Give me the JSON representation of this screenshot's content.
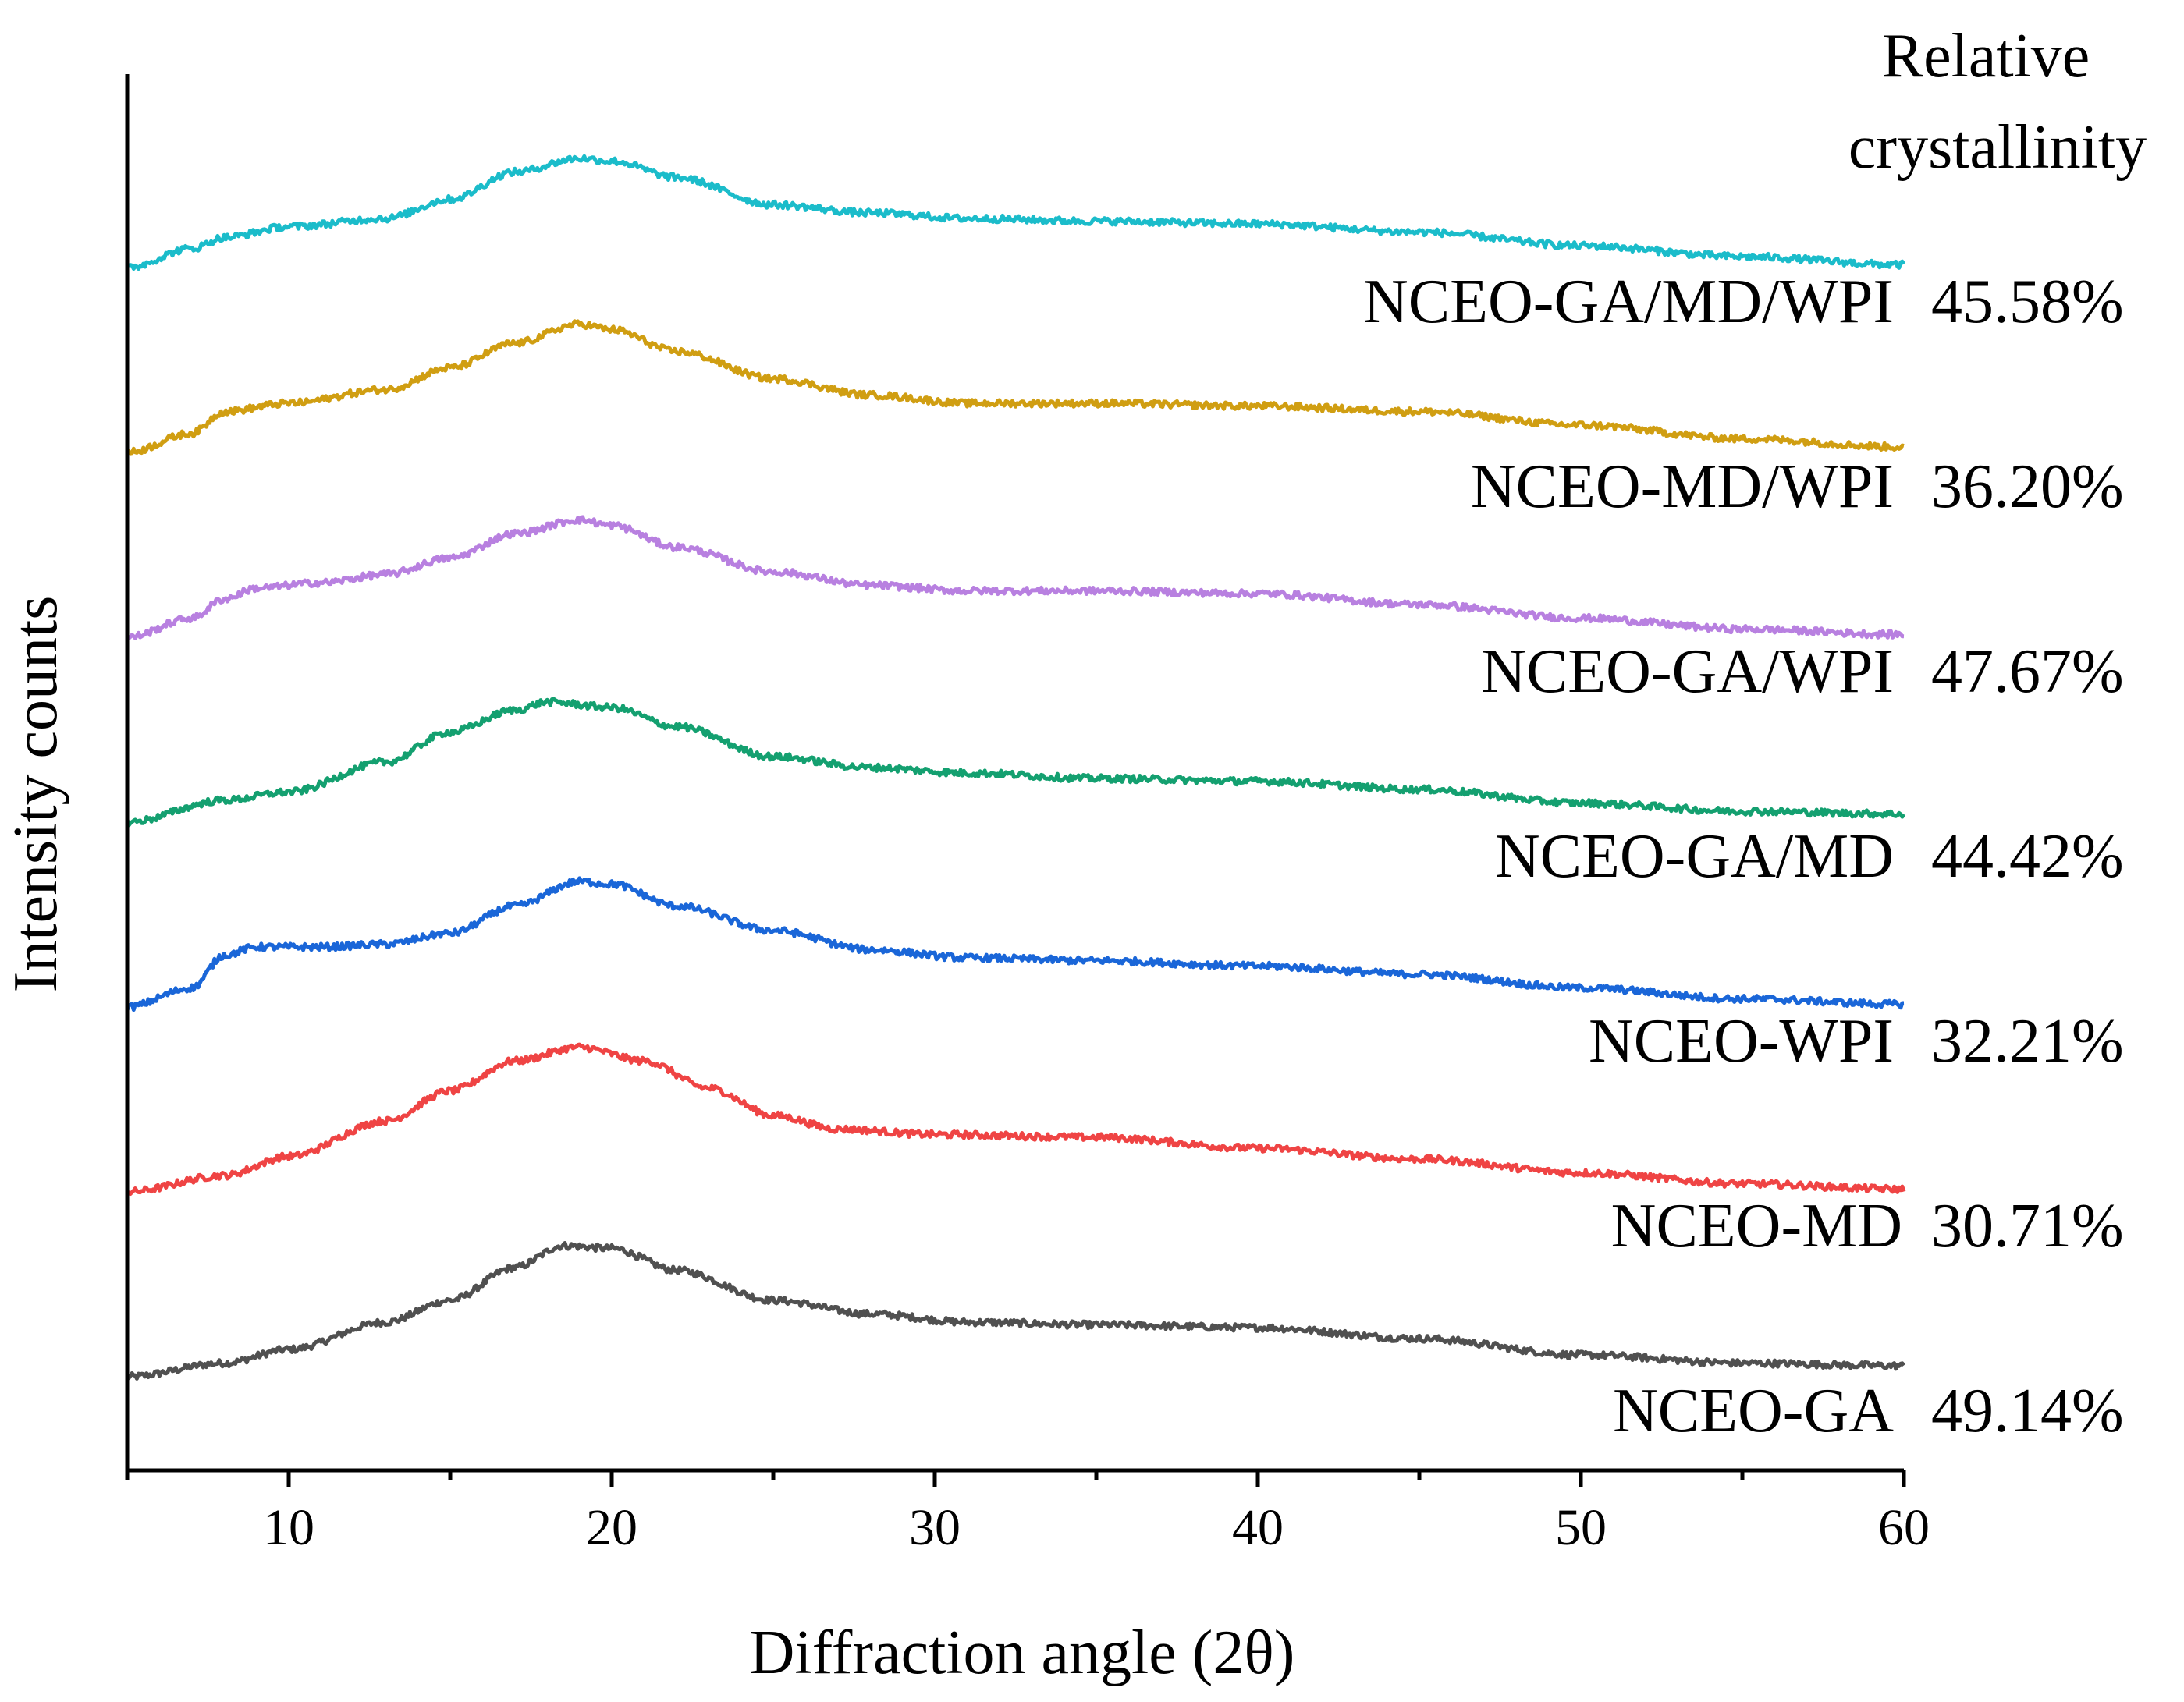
{
  "chart_data": {
    "type": "line",
    "xlabel": "Diffraction angle (2θ)",
    "ylabel": "Intensity counts",
    "xlim": [
      5,
      60
    ],
    "xticks": [
      10,
      20,
      30,
      40,
      50,
      60
    ],
    "legend_title": [
      "Relative",
      "crystallinity"
    ],
    "y_scale": "offset stacked, arbitrary units",
    "series": [
      {
        "name": "NCEO-GA",
        "value": "49.14%",
        "color": "#505050",
        "offset": 0,
        "points": [
          [
            5,
            0
          ],
          [
            8,
            0.1
          ],
          [
            10,
            0.2
          ],
          [
            13,
            0.4
          ],
          [
            15,
            0.56
          ],
          [
            17,
            0.8
          ],
          [
            18.5,
            0.96
          ],
          [
            20,
            0.94
          ],
          [
            22,
            0.78
          ],
          [
            25,
            0.56
          ],
          [
            28,
            0.46
          ],
          [
            31,
            0.4
          ],
          [
            35,
            0.38
          ],
          [
            40,
            0.36
          ],
          [
            45,
            0.28
          ],
          [
            50,
            0.16
          ],
          [
            55,
            0.1
          ],
          [
            60,
            0.08
          ]
        ]
      },
      {
        "name": "NCEO-MD",
        "value": "30.71%",
        "color": "#ef4444",
        "offset": 1,
        "points": [
          [
            5,
            0
          ],
          [
            8,
            0.12
          ],
          [
            10,
            0.26
          ],
          [
            13,
            0.52
          ],
          [
            15,
            0.74
          ],
          [
            17,
            0.96
          ],
          [
            19,
            1.06
          ],
          [
            21,
            0.96
          ],
          [
            23,
            0.76
          ],
          [
            25,
            0.56
          ],
          [
            27,
            0.46
          ],
          [
            30,
            0.42
          ],
          [
            35,
            0.4
          ],
          [
            40,
            0.32
          ],
          [
            45,
            0.24
          ],
          [
            50,
            0.14
          ],
          [
            55,
            0.06
          ],
          [
            60,
            0.02
          ]
        ]
      },
      {
        "name": "NCEO-WPI",
        "value": "32.21%",
        "color": "#1a66d8",
        "offset": 2,
        "points": [
          [
            5,
            0
          ],
          [
            7,
            0.14
          ],
          [
            8,
            0.38
          ],
          [
            9,
            0.44
          ],
          [
            11,
            0.44
          ],
          [
            13,
            0.46
          ],
          [
            15,
            0.54
          ],
          [
            17,
            0.74
          ],
          [
            19,
            0.92
          ],
          [
            20,
            0.9
          ],
          [
            22,
            0.74
          ],
          [
            25,
            0.56
          ],
          [
            28,
            0.42
          ],
          [
            31,
            0.36
          ],
          [
            35,
            0.34
          ],
          [
            40,
            0.3
          ],
          [
            45,
            0.24
          ],
          [
            50,
            0.14
          ],
          [
            55,
            0.06
          ],
          [
            60,
            0.02
          ]
        ]
      },
      {
        "name": "NCEO-GA/MD",
        "value": "44.42%",
        "color": "#14a070",
        "offset": 3,
        "points": [
          [
            5,
            0
          ],
          [
            8,
            0.16
          ],
          [
            10,
            0.22
          ],
          [
            13,
            0.44
          ],
          [
            15,
            0.66
          ],
          [
            17,
            0.82
          ],
          [
            18,
            0.88
          ],
          [
            20,
            0.84
          ],
          [
            22,
            0.7
          ],
          [
            25,
            0.48
          ],
          [
            28,
            0.4
          ],
          [
            31,
            0.36
          ],
          [
            35,
            0.32
          ],
          [
            40,
            0.3
          ],
          [
            45,
            0.24
          ],
          [
            50,
            0.14
          ],
          [
            55,
            0.08
          ],
          [
            60,
            0.06
          ]
        ]
      },
      {
        "name": "NCEO-GA/WPI",
        "value": "47.67%",
        "color": "#b880e0",
        "offset": 4,
        "points": [
          [
            5,
            0
          ],
          [
            7,
            0.14
          ],
          [
            8,
            0.28
          ],
          [
            9,
            0.36
          ],
          [
            11,
            0.4
          ],
          [
            13,
            0.46
          ],
          [
            15,
            0.58
          ],
          [
            17,
            0.76
          ],
          [
            19,
            0.86
          ],
          [
            20,
            0.82
          ],
          [
            22,
            0.66
          ],
          [
            25,
            0.48
          ],
          [
            28,
            0.38
          ],
          [
            31,
            0.34
          ],
          [
            35,
            0.34
          ],
          [
            40,
            0.32
          ],
          [
            45,
            0.24
          ],
          [
            50,
            0.14
          ],
          [
            55,
            0.06
          ],
          [
            60,
            0.02
          ]
        ]
      },
      {
        "name": "NCEO-MD/WPI",
        "value": "36.20%",
        "color": "#d09e12",
        "offset": 5,
        "points": [
          [
            5,
            0
          ],
          [
            7,
            0.14
          ],
          [
            8,
            0.3
          ],
          [
            10,
            0.36
          ],
          [
            13,
            0.46
          ],
          [
            15,
            0.62
          ],
          [
            17,
            0.8
          ],
          [
            19,
            0.94
          ],
          [
            20,
            0.9
          ],
          [
            22,
            0.74
          ],
          [
            25,
            0.54
          ],
          [
            28,
            0.42
          ],
          [
            31,
            0.36
          ],
          [
            35,
            0.36
          ],
          [
            40,
            0.34
          ],
          [
            45,
            0.3
          ],
          [
            50,
            0.2
          ],
          [
            55,
            0.1
          ],
          [
            60,
            0.04
          ]
        ]
      },
      {
        "name": "NCEO-GA/MD/WPI",
        "value": "45.58%",
        "color": "#1bbcca",
        "offset": 6,
        "points": [
          [
            5,
            0
          ],
          [
            7,
            0.14
          ],
          [
            8,
            0.22
          ],
          [
            10,
            0.3
          ],
          [
            13,
            0.36
          ],
          [
            15,
            0.5
          ],
          [
            17,
            0.7
          ],
          [
            19,
            0.8
          ],
          [
            20,
            0.78
          ],
          [
            22,
            0.66
          ],
          [
            25,
            0.46
          ],
          [
            28,
            0.4
          ],
          [
            31,
            0.36
          ],
          [
            35,
            0.34
          ],
          [
            40,
            0.32
          ],
          [
            45,
            0.26
          ],
          [
            50,
            0.16
          ],
          [
            55,
            0.08
          ],
          [
            60,
            0.02
          ]
        ]
      }
    ]
  }
}
